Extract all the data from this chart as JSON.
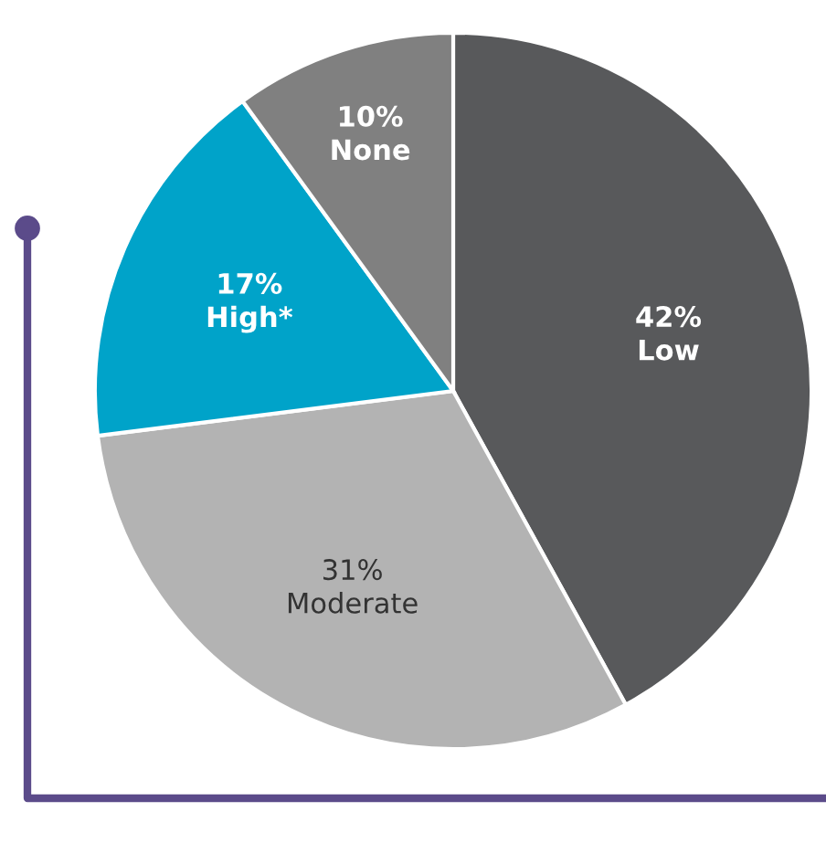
{
  "chart_data": {
    "type": "pie",
    "categories": [
      "Low",
      "Moderate",
      "High*",
      "None"
    ],
    "values": [
      42,
      31,
      17,
      10
    ],
    "value_labels": [
      "42%",
      "31%",
      "17%",
      "10%"
    ],
    "colors": [
      "#58595b",
      "#b3b3b3",
      "#00a3c9",
      "#808080"
    ]
  }
}
